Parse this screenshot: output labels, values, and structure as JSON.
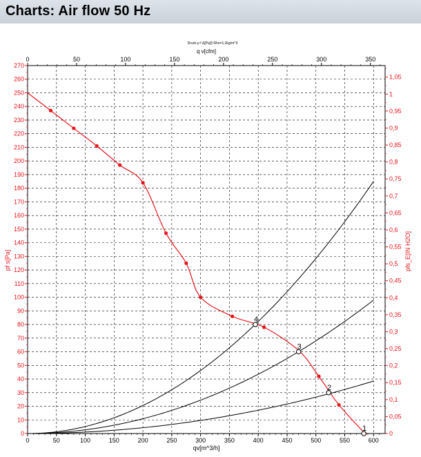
{
  "header": {
    "title": "Charts: Air flow 50 Hz"
  },
  "chart_data": {
    "type": "line",
    "title": "Druck p f Δ[Pa]§ Rho=1,2kg/m^3",
    "x_axis": {
      "label": "qv[m^3/h]",
      "range": [
        0,
        620
      ],
      "ticks": [
        0,
        50,
        100,
        150,
        200,
        250,
        300,
        350,
        400,
        450,
        500,
        550,
        600
      ]
    },
    "x2_axis": {
      "label": "q v[cfm]",
      "range": [
        0,
        365
      ],
      "ticks": [
        0,
        50,
        100,
        150,
        200,
        250,
        300,
        350
      ]
    },
    "y_axis": {
      "label": "pf s[Pa]",
      "range": [
        0,
        270
      ],
      "ticks": [
        0,
        10,
        20,
        30,
        40,
        50,
        60,
        70,
        80,
        90,
        100,
        110,
        120,
        130,
        140,
        150,
        160,
        170,
        180,
        190,
        200,
        210,
        220,
        230,
        240,
        250,
        260,
        270
      ]
    },
    "y2_axis": {
      "label": "pfs_E[IN H2O]",
      "range": [
        0,
        1.084
      ],
      "ticks": [
        "0",
        "0,05",
        "0,1",
        "0,15",
        "0,2",
        "0,25",
        "0,3",
        "0,35",
        "0,4",
        "0,45",
        "0,5",
        "0,55",
        "0,6",
        "0,65",
        "0,7",
        "0,75",
        "0,8",
        "0,85",
        "0,9",
        "0,95",
        "1",
        "1,05"
      ]
    },
    "grid": true,
    "fan_curve": {
      "points": [
        [
          0,
          250
        ],
        [
          40,
          237
        ],
        [
          80,
          224
        ],
        [
          120,
          211
        ],
        [
          160,
          197
        ],
        [
          200,
          184
        ],
        [
          240,
          147
        ],
        [
          275,
          125
        ],
        [
          300,
          100
        ],
        [
          355,
          86
        ],
        [
          410,
          78
        ],
        [
          470,
          61
        ],
        [
          505,
          42
        ],
        [
          540,
          21
        ],
        [
          585,
          0
        ]
      ],
      "markers": [
        [
          40,
          237
        ],
        [
          80,
          224
        ],
        [
          120,
          211
        ],
        [
          160,
          197
        ],
        [
          200,
          184
        ],
        [
          240,
          147
        ],
        [
          275,
          125
        ],
        [
          300,
          100
        ],
        [
          355,
          86
        ],
        [
          410,
          78
        ],
        [
          505,
          42
        ],
        [
          540,
          21
        ],
        [
          585,
          0
        ]
      ],
      "color": "#e8141b"
    },
    "system_curves": [
      {
        "k": 0.000514,
        "x_end": 600
      },
      {
        "k": 0.000272,
        "x_end": 600
      },
      {
        "k": 0.0001069,
        "x_end": 600
      }
    ],
    "operating_points": [
      {
        "label": "4",
        "x": 395,
        "y": 80
      },
      {
        "label": "3",
        "x": 470,
        "y": 60
      },
      {
        "label": "2",
        "x": 522,
        "y": 30
      },
      {
        "label": "1",
        "x": 583,
        "y": 0
      }
    ]
  }
}
